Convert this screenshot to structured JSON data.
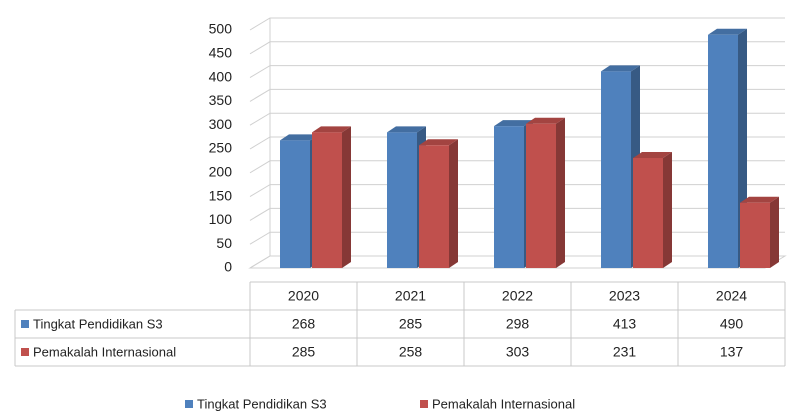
{
  "chart_data": {
    "type": "bar3d",
    "categories": [
      "2020",
      "2021",
      "2022",
      "2023",
      "2024"
    ],
    "series": [
      {
        "name": "Tingkat Pendidikan S3",
        "color": "#4f81bd",
        "values": [
          268,
          285,
          298,
          413,
          490
        ]
      },
      {
        "name": "Pemakalah Internasional",
        "color": "#c0504d",
        "values": [
          285,
          258,
          303,
          231,
          137
        ]
      }
    ],
    "ylim": [
      0,
      500
    ],
    "yticks": [
      0,
      50,
      100,
      150,
      200,
      250,
      300,
      350,
      400,
      450,
      500
    ],
    "grid": true,
    "legend": "bottom"
  }
}
